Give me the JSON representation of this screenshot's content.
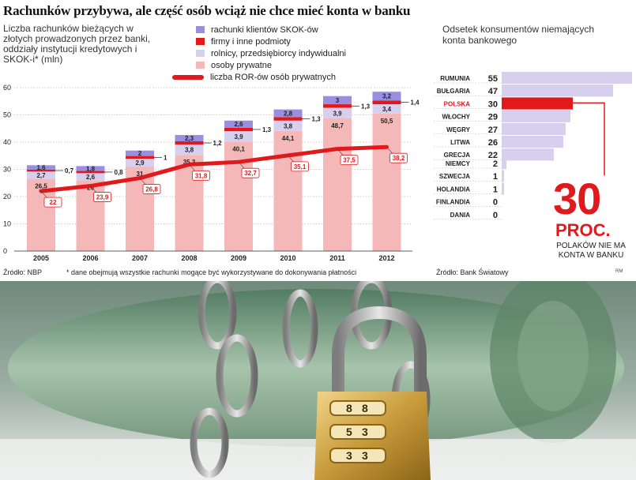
{
  "header": {
    "title": "Rachunków przybywa, ale część osób wciąż nie chce mieć konta w banku",
    "subtitle": "Liczba rachunków bieżących w złotych prowadzonych przez banki, oddziały instytucji kredytowych i SKOK-i* (mln)"
  },
  "legend": {
    "skok": "rachunki klientów SKOK-ów",
    "firmy": "firmy i inne podmioty",
    "rolnicy": "rolnicy, przedsiębiorcy indywidualni",
    "prywatne": "osoby prywatne",
    "ror": "liczba ROR-ów osób prywatnych"
  },
  "colors": {
    "prywatne": "#f4b8b8",
    "rolnicy": "#d6d0ee",
    "firmy": "#e0191d",
    "skok": "#9a8ee0",
    "ror": "#e0191d"
  },
  "footer": {
    "source_left": "Źródło: NBP",
    "footnote": "* dane obejmują wszystkie rachunki mogące być wykorzystywane do dokonywania płatności",
    "source_right": "Źródło: Bank Światowy",
    "rm": "RM"
  },
  "chart_data": [
    {
      "type": "bar",
      "title": "Rachunków przybywa, ale część osób wciąż nie chce mieć konta w banku",
      "ylabel": "mln",
      "ylim": [
        0,
        60
      ],
      "yticks": [
        0,
        10,
        20,
        30,
        40,
        50,
        60
      ],
      "categories": [
        "2005",
        "2006",
        "2007",
        "2008",
        "2009",
        "2010",
        "2011",
        "2012"
      ],
      "series": [
        {
          "name": "osoby prywatne",
          "values": [
            26.5,
            26.0,
            31.0,
            35.3,
            40.1,
            44.1,
            48.7,
            50.5
          ]
        },
        {
          "name": "rolnicy, przedsiębiorcy indywidualni",
          "values": [
            2.7,
            2.6,
            2.9,
            3.8,
            3.9,
            3.8,
            3.9,
            3.4
          ]
        },
        {
          "name": "firmy i inne podmioty",
          "values": [
            0.7,
            0.8,
            1.0,
            1.2,
            1.3,
            1.3,
            1.3,
            1.4
          ]
        },
        {
          "name": "rachunki klientów SKOK-ów",
          "values": [
            1.6,
            1.8,
            2.0,
            2.3,
            2.6,
            2.8,
            3.0,
            3.2
          ]
        },
        {
          "name": "liczba ROR-ów osób prywatnych",
          "type": "line",
          "values": [
            22.0,
            23.9,
            26.8,
            31.8,
            32.7,
            35.1,
            37.5,
            38.2
          ]
        }
      ]
    },
    {
      "type": "bar",
      "title": "Odsetek konsumentów niemających konta bankowego",
      "orientation": "horizontal",
      "groups": [
        {
          "categories": [
            "RUMUNIA",
            "BUŁGARIA",
            "POLSKA",
            "WŁOCHY",
            "WĘGRY",
            "LITWA",
            "GRECJA"
          ],
          "values": [
            55,
            47,
            30,
            29,
            27,
            26,
            22
          ]
        },
        {
          "categories": [
            "NIEMCY",
            "SZWECJA",
            "HOLANDIA",
            "FINLANDIA",
            "DANIA"
          ],
          "values": [
            2,
            1,
            1,
            0,
            0
          ]
        }
      ],
      "highlight": "POLSKA",
      "callout": {
        "number": "30",
        "unit": "PROC.",
        "text": "POLAKÓW NIE MA KONTA W BANKU"
      }
    }
  ]
}
